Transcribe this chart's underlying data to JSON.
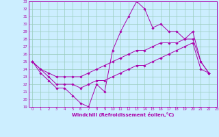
{
  "xlabel": "Windchill (Refroidissement éolien,°C)",
  "bg_color": "#cceeff",
  "grid_color": "#99ccbb",
  "line_color": "#aa00aa",
  "xlim": [
    -0.5,
    23
  ],
  "ylim": [
    19,
    33
  ],
  "yticks": [
    19,
    20,
    21,
    22,
    23,
    24,
    25,
    26,
    27,
    28,
    29,
    30,
    31,
    32,
    33
  ],
  "xticks": [
    0,
    1,
    2,
    3,
    4,
    5,
    6,
    7,
    8,
    9,
    10,
    11,
    12,
    13,
    14,
    15,
    16,
    17,
    18,
    19,
    20,
    21,
    22,
    23
  ],
  "series1": [
    25.0,
    23.5,
    22.5,
    21.5,
    21.5,
    20.5,
    19.5,
    19.0,
    22.0,
    21.0,
    26.5,
    29.0,
    31.0,
    33.0,
    32.0,
    29.5,
    30.0,
    29.0,
    29.0,
    28.0,
    29.0,
    25.0,
    23.5
  ],
  "series2": [
    25.0,
    24.0,
    23.5,
    23.0,
    23.0,
    23.0,
    23.0,
    23.5,
    24.0,
    24.5,
    25.0,
    25.5,
    26.0,
    26.5,
    26.5,
    27.0,
    27.5,
    27.5,
    27.5,
    28.0,
    28.0,
    25.0,
    23.5
  ],
  "series3": [
    25.0,
    24.0,
    23.0,
    22.0,
    22.0,
    22.0,
    21.5,
    22.0,
    22.5,
    22.5,
    23.0,
    23.5,
    24.0,
    24.5,
    24.5,
    25.0,
    25.5,
    26.0,
    26.5,
    27.0,
    27.5,
    24.0,
    23.5
  ]
}
